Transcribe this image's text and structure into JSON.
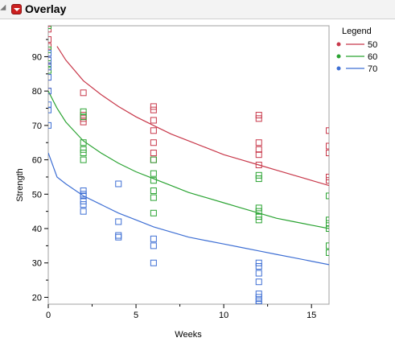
{
  "header": {
    "title": "Overlay"
  },
  "chart_data": {
    "type": "scatter",
    "title": "Overlay",
    "xlabel": "Weeks",
    "ylabel": "Strength",
    "xlim": [
      0,
      16
    ],
    "ylim": [
      18,
      99
    ],
    "xticks": [
      0,
      5,
      10,
      15
    ],
    "yticks": [
      20,
      30,
      40,
      50,
      60,
      70,
      80,
      90
    ],
    "grid": false,
    "legend": {
      "title": "Legend",
      "position": "top-right"
    },
    "series": [
      {
        "name": "50",
        "color": "#c8384a",
        "points": [
          [
            0,
            98
          ],
          [
            0,
            95
          ],
          [
            0,
            93
          ],
          [
            0,
            89
          ],
          [
            0,
            87
          ],
          [
            0,
            84
          ],
          [
            0,
            80
          ],
          [
            2,
            79.5
          ],
          [
            2,
            73
          ],
          [
            2,
            72
          ],
          [
            2,
            71
          ],
          [
            6,
            75.5
          ],
          [
            6,
            74.5
          ],
          [
            6,
            71.5
          ],
          [
            6,
            68.5
          ],
          [
            6,
            65
          ],
          [
            6,
            62
          ],
          [
            6,
            60
          ],
          [
            12,
            73
          ],
          [
            12,
            72
          ],
          [
            12,
            65
          ],
          [
            12,
            63
          ],
          [
            12,
            61.5
          ],
          [
            12,
            58.5
          ],
          [
            16,
            68.5
          ],
          [
            16,
            64
          ],
          [
            16,
            62
          ],
          [
            16,
            55
          ],
          [
            16,
            54
          ]
        ],
        "fit": [
          [
            0.5,
            93
          ],
          [
            1,
            89
          ],
          [
            2,
            83
          ],
          [
            3,
            79
          ],
          [
            4,
            75.5
          ],
          [
            5,
            72.5
          ],
          [
            6,
            70
          ],
          [
            7,
            67.5
          ],
          [
            8,
            65.5
          ],
          [
            9,
            63.5
          ],
          [
            10,
            61.5
          ],
          [
            11,
            60
          ],
          [
            12,
            58.5
          ],
          [
            13,
            57
          ],
          [
            14,
            55.5
          ],
          [
            15,
            54
          ],
          [
            16,
            52.5
          ]
        ]
      },
      {
        "name": "60",
        "color": "#2aa332",
        "points": [
          [
            0,
            99
          ],
          [
            0,
            92
          ],
          [
            0,
            88
          ],
          [
            0,
            86
          ],
          [
            2,
            74
          ],
          [
            2,
            72.5
          ],
          [
            2,
            65
          ],
          [
            2,
            63
          ],
          [
            2,
            62
          ],
          [
            2,
            60
          ],
          [
            6,
            60
          ],
          [
            6,
            56
          ],
          [
            6,
            54
          ],
          [
            6,
            51
          ],
          [
            6,
            49
          ],
          [
            6,
            44.5
          ],
          [
            12,
            55.5
          ],
          [
            12,
            54.5
          ],
          [
            12,
            46
          ],
          [
            12,
            45
          ],
          [
            12,
            43.5
          ],
          [
            12,
            42.5
          ],
          [
            16,
            49.5
          ],
          [
            16,
            42.5
          ],
          [
            16,
            41.5
          ],
          [
            16,
            40
          ],
          [
            16,
            35
          ],
          [
            16,
            33
          ]
        ],
        "fit": [
          [
            0,
            80
          ],
          [
            0.5,
            75
          ],
          [
            1,
            71
          ],
          [
            2,
            65.5
          ],
          [
            3,
            62
          ],
          [
            4,
            59
          ],
          [
            5,
            56.5
          ],
          [
            6,
            54.5
          ],
          [
            7,
            52.5
          ],
          [
            8,
            50.5
          ],
          [
            9,
            49
          ],
          [
            10,
            47.5
          ],
          [
            11,
            46
          ],
          [
            12,
            44.5
          ],
          [
            13,
            43
          ],
          [
            14,
            42
          ],
          [
            15,
            41
          ],
          [
            16,
            40
          ]
        ]
      },
      {
        "name": "70",
        "color": "#3e6fd4",
        "points": [
          [
            0,
            91
          ],
          [
            0,
            89
          ],
          [
            0,
            87
          ],
          [
            0,
            84
          ],
          [
            0,
            80
          ],
          [
            0,
            76
          ],
          [
            0,
            74.5
          ],
          [
            0,
            70
          ],
          [
            2,
            51
          ],
          [
            2,
            50
          ],
          [
            2,
            49.5
          ],
          [
            2,
            48
          ],
          [
            2,
            47
          ],
          [
            2,
            45
          ],
          [
            4,
            53
          ],
          [
            4,
            42
          ],
          [
            4,
            38
          ],
          [
            4,
            37.5
          ],
          [
            6,
            37
          ],
          [
            6,
            35
          ],
          [
            6,
            30
          ],
          [
            12,
            30
          ],
          [
            12,
            29
          ],
          [
            12,
            27
          ],
          [
            12,
            24.5
          ],
          [
            12,
            21
          ],
          [
            12,
            20
          ],
          [
            12,
            19
          ],
          [
            12,
            18
          ]
        ],
        "fit": [
          [
            0,
            62
          ],
          [
            0.5,
            55
          ],
          [
            1,
            53
          ],
          [
            2,
            49.5
          ],
          [
            3,
            47
          ],
          [
            4,
            44.5
          ],
          [
            5,
            42.5
          ],
          [
            6,
            40.5
          ],
          [
            7,
            39
          ],
          [
            8,
            37.5
          ],
          [
            9,
            36.5
          ],
          [
            10,
            35.5
          ],
          [
            11,
            34.5
          ],
          [
            12,
            33.5
          ],
          [
            13,
            32.5
          ],
          [
            14,
            31.5
          ],
          [
            15,
            30.5
          ],
          [
            16,
            29.5
          ]
        ]
      }
    ]
  }
}
